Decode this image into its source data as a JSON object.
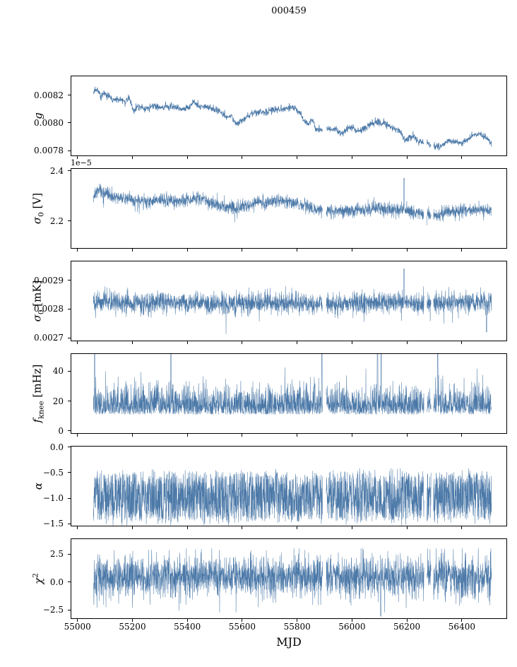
{
  "chart_data": {
    "type": "line",
    "title": "000459",
    "xlabel": "MJD",
    "color": "#4c79a8",
    "legend": "none",
    "grid": false,
    "x": {
      "lim": [
        54975,
        56565
      ],
      "data_start": 55058,
      "data_end": 56508,
      "ticks": [
        {
          "v": 55000,
          "label": "55000"
        },
        {
          "v": 55200,
          "label": "55200"
        },
        {
          "v": 55400,
          "label": "55400"
        },
        {
          "v": 55600,
          "label": "55600"
        },
        {
          "v": 55800,
          "label": "55800"
        },
        {
          "v": 56000,
          "label": "56000"
        },
        {
          "v": 56200,
          "label": "56200"
        },
        {
          "v": 56400,
          "label": "56400"
        }
      ],
      "gaps": [
        [
          55893,
          55906
        ],
        [
          56262,
          56273
        ],
        [
          56288,
          56297
        ]
      ]
    },
    "panels": [
      {
        "id": "g",
        "ylabel": {
          "base": "g",
          "sub": "",
          "sup": "",
          "suffix": ""
        },
        "ylim": [
          0.00776,
          0.00834
        ],
        "yticks": [
          {
            "v": 0.0078,
            "label": "0.0078"
          },
          {
            "v": 0.008,
            "label": "0.0080"
          },
          {
            "v": 0.0082,
            "label": "0.0082"
          }
        ],
        "n": 1600,
        "series": {
          "kind": "gauss",
          "std": 1.2e-05,
          "control": [
            [
              55058,
              0.00821
            ],
            [
              55065,
              0.00824
            ],
            [
              55075,
              0.00823
            ],
            [
              55085,
              0.00819
            ],
            [
              55095,
              0.00821
            ],
            [
              55110,
              0.0082
            ],
            [
              55125,
              0.00817
            ],
            [
              55140,
              0.00816
            ],
            [
              55155,
              0.00817
            ],
            [
              55170,
              0.00816
            ],
            [
              55185,
              0.00817
            ],
            [
              55195,
              0.00815
            ],
            [
              55205,
              0.00809
            ],
            [
              55215,
              0.00811
            ],
            [
              55230,
              0.00812
            ],
            [
              55250,
              0.0081
            ],
            [
              55270,
              0.00812
            ],
            [
              55290,
              0.00812
            ],
            [
              55310,
              0.00811
            ],
            [
              55330,
              0.00812
            ],
            [
              55350,
              0.00812
            ],
            [
              55370,
              0.0081
            ],
            [
              55390,
              0.0081
            ],
            [
              55410,
              0.00812
            ],
            [
              55425,
              0.00816
            ],
            [
              55435,
              0.00813
            ],
            [
              55450,
              0.00812
            ],
            [
              55470,
              0.00812
            ],
            [
              55490,
              0.0081
            ],
            [
              55510,
              0.00809
            ],
            [
              55530,
              0.00806
            ],
            [
              55545,
              0.00804
            ],
            [
              55560,
              0.00805
            ],
            [
              55575,
              0.008
            ],
            [
              55590,
              0.008
            ],
            [
              55605,
              0.00802
            ],
            [
              55620,
              0.00805
            ],
            [
              55635,
              0.00807
            ],
            [
              55650,
              0.00807
            ],
            [
              55665,
              0.00808
            ],
            [
              55680,
              0.00807
            ],
            [
              55695,
              0.00808
            ],
            [
              55710,
              0.0081
            ],
            [
              55725,
              0.00809
            ],
            [
              55740,
              0.0081
            ],
            [
              55755,
              0.0081
            ],
            [
              55770,
              0.00811
            ],
            [
              55785,
              0.00811
            ],
            [
              55800,
              0.0081
            ],
            [
              55815,
              0.00806
            ],
            [
              55830,
              0.008
            ],
            [
              55840,
              0.00799
            ],
            [
              55850,
              0.00803
            ],
            [
              55858,
              0.00801
            ],
            [
              55866,
              0.00796
            ],
            [
              55880,
              0.00795
            ],
            [
              55895,
              0.00794
            ],
            [
              55910,
              0.00796
            ],
            [
              55925,
              0.00795
            ],
            [
              55940,
              0.00796
            ],
            [
              55955,
              0.00792
            ],
            [
              55970,
              0.00793
            ],
            [
              55985,
              0.00796
            ],
            [
              56000,
              0.00797
            ],
            [
              56015,
              0.00794
            ],
            [
              56030,
              0.00795
            ],
            [
              56045,
              0.00796
            ],
            [
              56060,
              0.00798
            ],
            [
              56075,
              0.008
            ],
            [
              56090,
              0.00801
            ],
            [
              56105,
              0.008
            ],
            [
              56120,
              0.008
            ],
            [
              56135,
              0.00798
            ],
            [
              56150,
              0.00796
            ],
            [
              56165,
              0.00795
            ],
            [
              56180,
              0.00792
            ],
            [
              56195,
              0.00787
            ],
            [
              56210,
              0.0079
            ],
            [
              56225,
              0.0079
            ],
            [
              56240,
              0.00787
            ],
            [
              56255,
              0.00786
            ],
            [
              56270,
              0.00785
            ],
            [
              56285,
              0.00784
            ],
            [
              56300,
              0.00783
            ],
            [
              56315,
              0.00783
            ],
            [
              56330,
              0.00784
            ],
            [
              56345,
              0.00786
            ],
            [
              56360,
              0.00787
            ],
            [
              56375,
              0.00786
            ],
            [
              56390,
              0.00785
            ],
            [
              56405,
              0.00786
            ],
            [
              56420,
              0.00788
            ],
            [
              56435,
              0.0079
            ],
            [
              56450,
              0.00791
            ],
            [
              56465,
              0.00792
            ],
            [
              56480,
              0.0079
            ],
            [
              56495,
              0.00789
            ],
            [
              56508,
              0.00784
            ]
          ]
        }
      },
      {
        "id": "sigma0-v",
        "ylabel": {
          "base": "σ",
          "sub": "0",
          "sup": "",
          "suffix": " [V]"
        },
        "offset_label": "1e−5",
        "ylim": [
          2.09,
          2.41
        ],
        "yticks": [
          {
            "v": 2.2,
            "label": "2.2"
          },
          {
            "v": 2.4,
            "label": "2.4"
          }
        ],
        "n": 2600,
        "series": {
          "kind": "gauss",
          "std": 0.013,
          "neg_prob": 0.012,
          "neg_mag": 0.05,
          "spikes": [
            [
              56190,
              2.37,
              1.5
            ]
          ],
          "control": [
            [
              55058,
              2.3
            ],
            [
              55075,
              2.325
            ],
            [
              55090,
              2.315
            ],
            [
              55120,
              2.3
            ],
            [
              55160,
              2.292
            ],
            [
              55200,
              2.283
            ],
            [
              55250,
              2.278
            ],
            [
              55300,
              2.283
            ],
            [
              55350,
              2.281
            ],
            [
              55400,
              2.281
            ],
            [
              55440,
              2.289
            ],
            [
              55480,
              2.276
            ],
            [
              55520,
              2.262
            ],
            [
              55560,
              2.252
            ],
            [
              55600,
              2.257
            ],
            [
              55650,
              2.272
            ],
            [
              55700,
              2.277
            ],
            [
              55750,
              2.281
            ],
            [
              55800,
              2.271
            ],
            [
              55850,
              2.252
            ],
            [
              55900,
              2.242
            ],
            [
              55950,
              2.238
            ],
            [
              56000,
              2.242
            ],
            [
              56050,
              2.247
            ],
            [
              56100,
              2.252
            ],
            [
              56150,
              2.247
            ],
            [
              56200,
              2.242
            ],
            [
              56250,
              2.227
            ],
            [
              56300,
              2.222
            ],
            [
              56350,
              2.237
            ],
            [
              56400,
              2.242
            ],
            [
              56450,
              2.247
            ],
            [
              56508,
              2.242
            ]
          ]
        }
      },
      {
        "id": "sigma0-mk",
        "ylabel": {
          "base": "σ",
          "sub": "0",
          "sup": "",
          "suffix": " [mK]"
        },
        "ylim": [
          0.002688,
          0.002968
        ],
        "yticks": [
          {
            "v": 0.0027,
            "label": "0.0027"
          },
          {
            "v": 0.0028,
            "label": "0.0028"
          },
          {
            "v": 0.0029,
            "label": "0.0029"
          }
        ],
        "n": 2600,
        "series": {
          "kind": "gauss",
          "std": 1.85e-05,
          "neg_prob": 0.008,
          "neg_mag": 6e-05,
          "spikes": [
            [
              56190,
              0.00294,
              1.5
            ],
            [
              56490,
              0.00272,
              1.2
            ]
          ],
          "control": [
            [
              55058,
              0.002825
            ],
            [
              55100,
              0.002828
            ],
            [
              55200,
              0.00282
            ],
            [
              55300,
              0.002824
            ],
            [
              55400,
              0.002822
            ],
            [
              55500,
              0.002818
            ],
            [
              55600,
              0.002822
            ],
            [
              55700,
              0.002823
            ],
            [
              55800,
              0.002821
            ],
            [
              55900,
              0.002817
            ],
            [
              56000,
              0.00282
            ],
            [
              56100,
              0.002822
            ],
            [
              56200,
              0.002821
            ],
            [
              56300,
              0.002818
            ],
            [
              56400,
              0.002824
            ],
            [
              56508,
              0.002822
            ]
          ]
        }
      },
      {
        "id": "fknee",
        "ylabel": {
          "base": "f",
          "sub": "knee",
          "sup": "",
          "suffix": " [mHz]"
        },
        "ylim": [
          -2,
          52
        ],
        "yticks": [
          {
            "v": 0,
            "label": "0"
          },
          {
            "v": 20,
            "label": "20"
          },
          {
            "v": 40,
            "label": "40"
          }
        ],
        "n": 2600,
        "series": {
          "kind": "absgauss",
          "base": 11,
          "std": 9,
          "extra_prob": 0.02,
          "extra": 14,
          "spikes": [
            [
              55062,
              55,
              1.2
            ],
            [
              55340,
              55,
              1.2
            ],
            [
              55890,
              55,
              1.2
            ],
            [
              56093,
              55,
              1.2
            ],
            [
              56106,
              55,
              1.2
            ],
            [
              56290,
              55,
              1.2
            ],
            [
              56312,
              55,
              1.2
            ]
          ]
        }
      },
      {
        "id": "alpha",
        "ylabel": {
          "base": "α",
          "sub": "",
          "sup": "",
          "suffix": ""
        },
        "ylim": [
          -1.55,
          0.02
        ],
        "yticks": [
          {
            "v": 0.0,
            "label": "0.0"
          },
          {
            "v": -0.5,
            "label": "−0.5"
          },
          {
            "v": -1.0,
            "label": "−1.0"
          },
          {
            "v": -1.5,
            "label": "−1.5"
          }
        ],
        "n": 2600,
        "series": {
          "kind": "tri",
          "center": -0.97,
          "half": 0.48,
          "jitter": 0.05,
          "clip": [
            -1.53,
            -0.42
          ]
        }
      },
      {
        "id": "chi2",
        "ylabel": {
          "base": "χ",
          "sub": "",
          "sup": "2",
          "suffix": ""
        },
        "ylim": [
          -3.3,
          3.9
        ],
        "yticks": [
          {
            "v": 2.5,
            "label": "2.5"
          },
          {
            "v": 0.0,
            "label": "0.0"
          },
          {
            "v": -2.5,
            "label": "−2.5"
          }
        ],
        "n": 2600,
        "series": {
          "kind": "gauss",
          "std": 0.95,
          "clip": [
            -2.7,
            3.0
          ],
          "spikes": [
            [
              56105,
              -3.05,
              1.0
            ]
          ],
          "control": [
            [
              55058,
              0.45
            ],
            [
              56508,
              0.45
            ]
          ]
        }
      }
    ]
  }
}
